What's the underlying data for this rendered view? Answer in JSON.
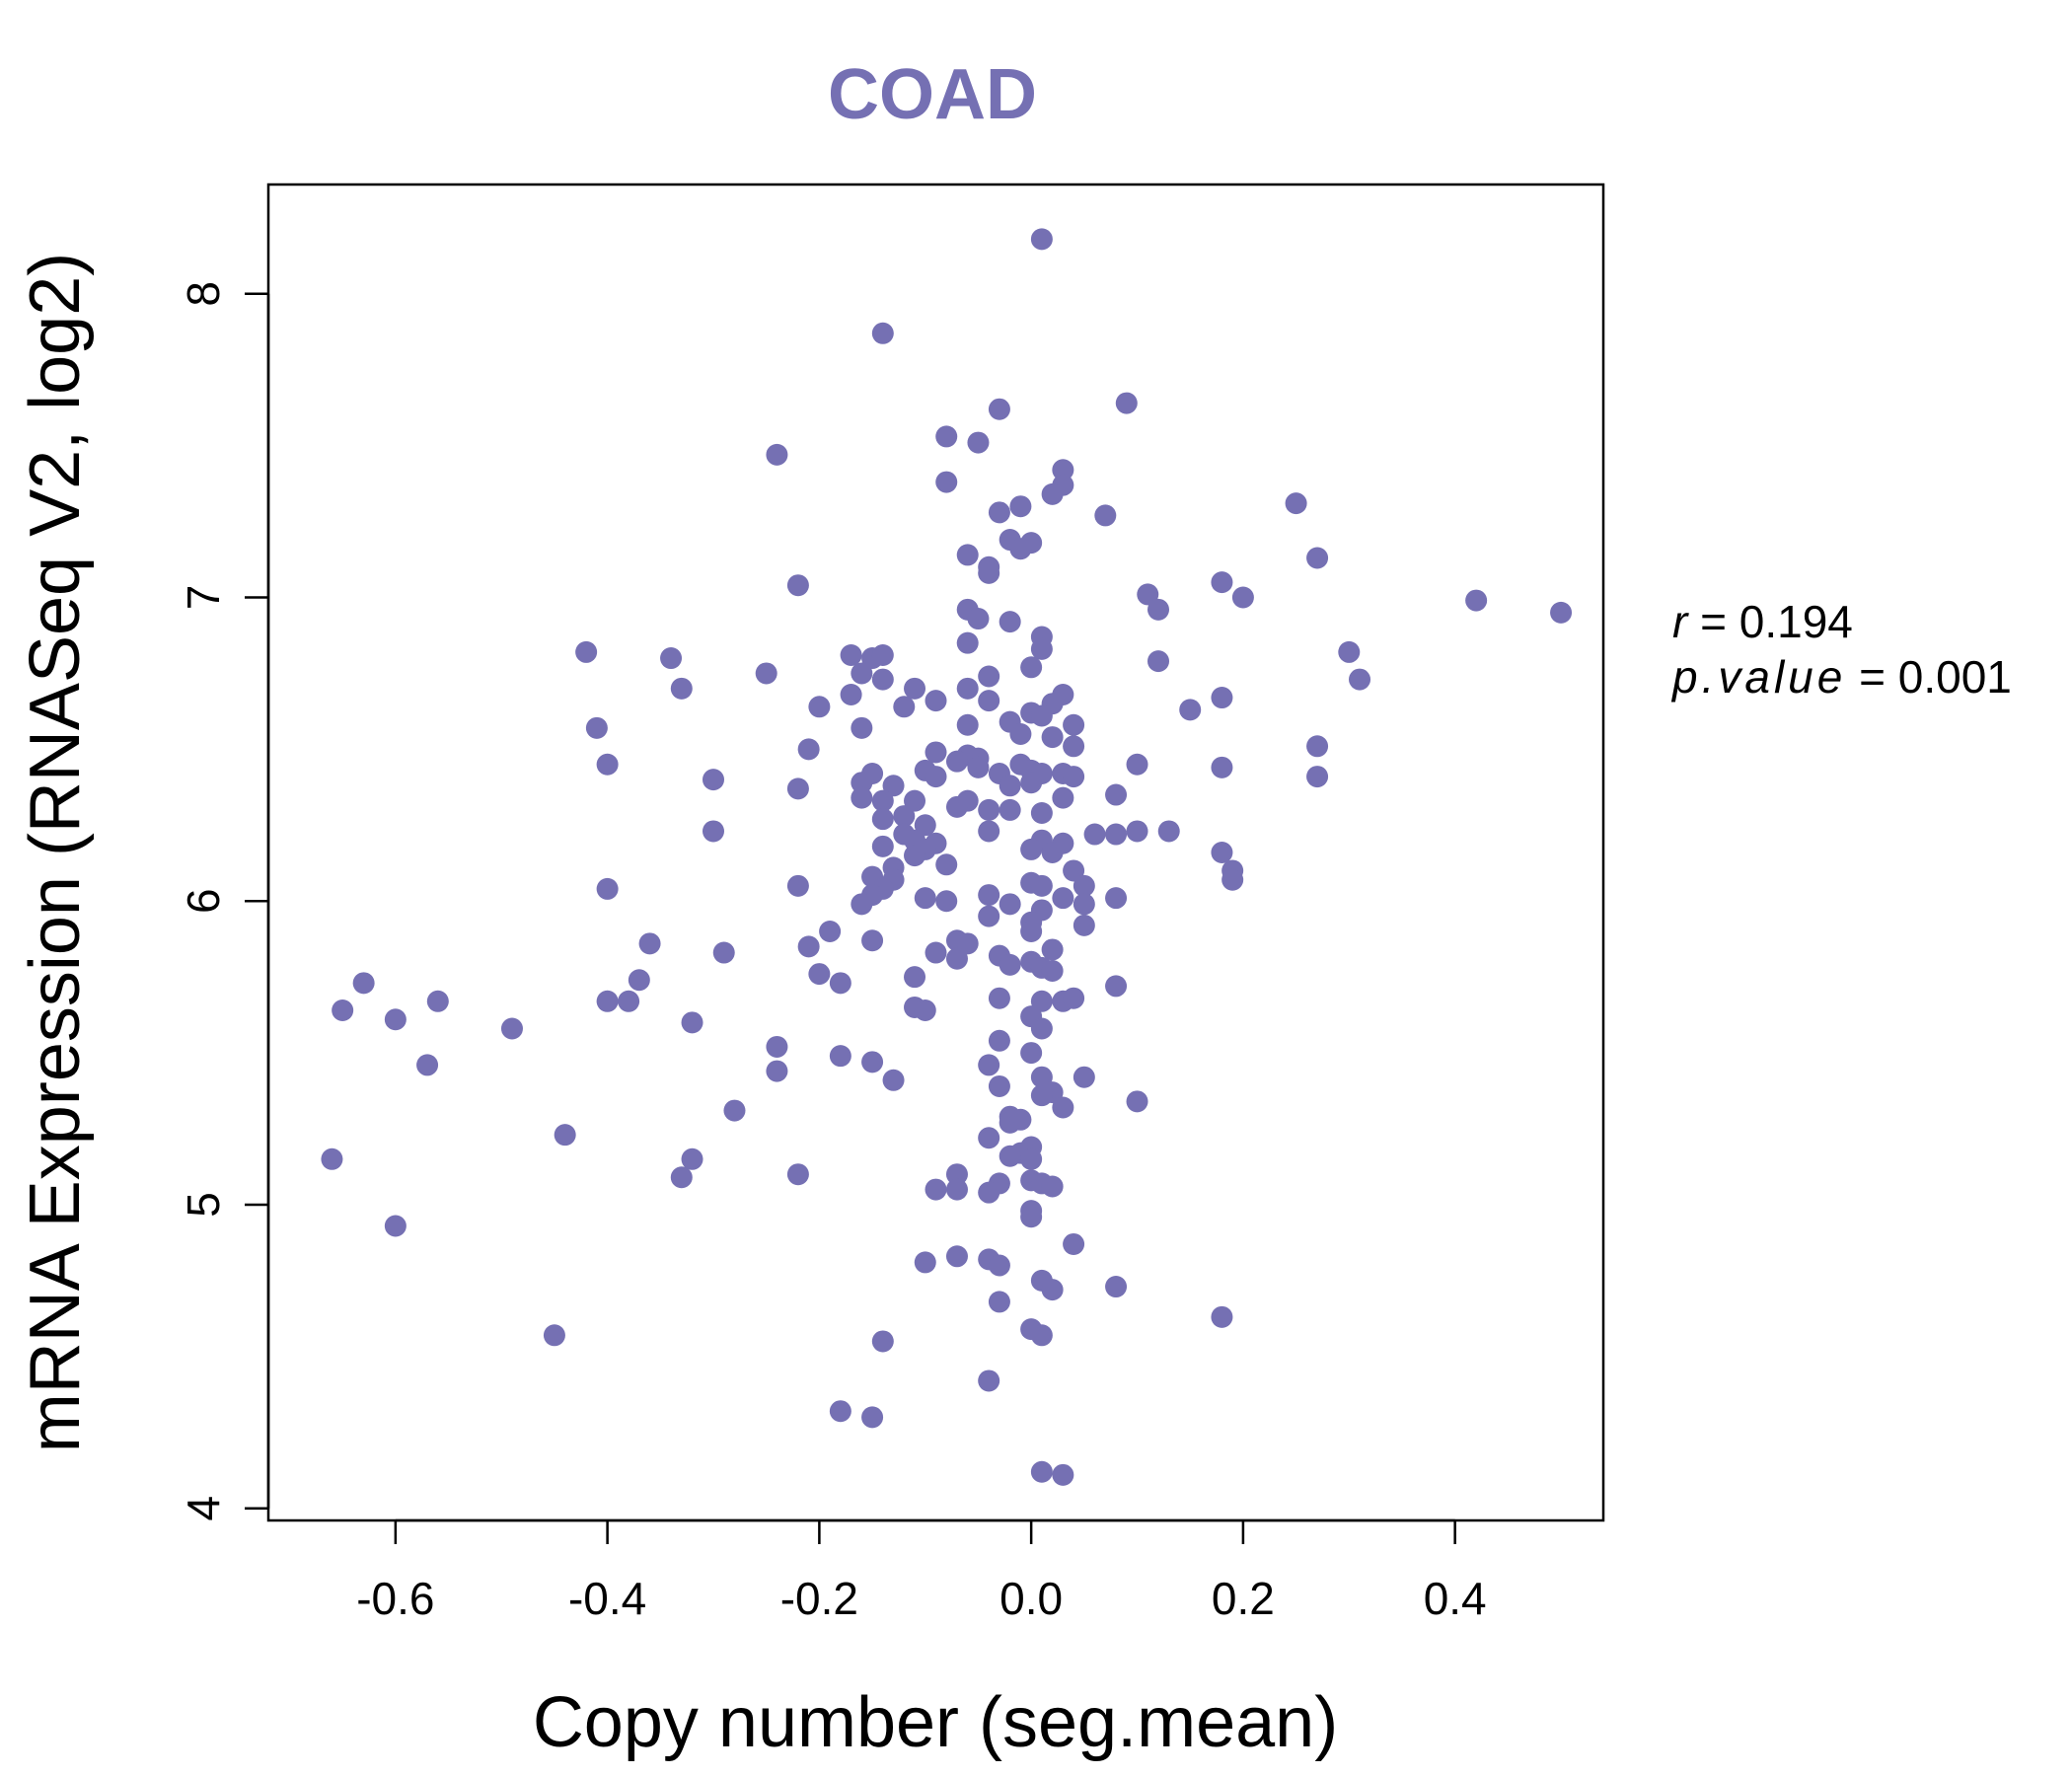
{
  "chart_data": {
    "type": "scatter",
    "title": "COAD",
    "xlabel": "Copy number (seg.mean)",
    "ylabel": "mRNA Expression (RNASeq V2, log2)",
    "xlim": [
      -0.72,
      0.54
    ],
    "ylim": [
      3.96,
      8.36
    ],
    "x_ticks": [
      -0.6,
      -0.4,
      -0.2,
      0.0,
      0.2,
      0.4
    ],
    "x_tick_labels": [
      "-0.6",
      "-0.4",
      "-0.2",
      "0.0",
      "0.2",
      "0.4"
    ],
    "y_ticks": [
      4,
      5,
      6,
      7,
      8
    ],
    "y_tick_labels": [
      "4",
      "5",
      "6",
      "7",
      "8"
    ],
    "point_color": "#7570b3",
    "title_color": "#7570b3",
    "stats": {
      "r_label": "r",
      "r_value": "0.194",
      "p_label": "p.value",
      "p_value": "0.001"
    },
    "points": [
      [
        0.01,
        8.18
      ],
      [
        -0.14,
        7.87
      ],
      [
        0.09,
        7.64
      ],
      [
        -0.03,
        7.62
      ],
      [
        -0.24,
        7.47
      ],
      [
        -0.08,
        7.53
      ],
      [
        -0.05,
        7.51
      ],
      [
        0.03,
        7.42
      ],
      [
        -0.08,
        7.38
      ],
      [
        0.03,
        7.37
      ],
      [
        0.02,
        7.34
      ],
      [
        -0.01,
        7.3
      ],
      [
        -0.03,
        7.28
      ],
      [
        0.07,
        7.27
      ],
      [
        0.25,
        7.31
      ],
      [
        -0.02,
        7.19
      ],
      [
        0.0,
        7.18
      ],
      [
        -0.01,
        7.16
      ],
      [
        -0.06,
        7.14
      ],
      [
        -0.04,
        7.1
      ],
      [
        -0.04,
        7.08
      ],
      [
        0.27,
        7.13
      ],
      [
        -0.22,
        7.04
      ],
      [
        0.18,
        7.05
      ],
      [
        0.11,
        7.01
      ],
      [
        0.2,
        7.0
      ],
      [
        0.42,
        6.99
      ],
      [
        0.5,
        6.95
      ],
      [
        0.12,
        6.96
      ],
      [
        -0.06,
        6.96
      ],
      [
        -0.05,
        6.93
      ],
      [
        -0.02,
        6.92
      ],
      [
        0.01,
        6.87
      ],
      [
        -0.06,
        6.85
      ],
      [
        0.01,
        6.83
      ],
      [
        -0.42,
        6.82
      ],
      [
        -0.17,
        6.81
      ],
      [
        -0.15,
        6.8
      ],
      [
        -0.14,
        6.81
      ],
      [
        -0.34,
        6.8
      ],
      [
        0.3,
        6.82
      ],
      [
        0.12,
        6.79
      ],
      [
        0.0,
        6.77
      ],
      [
        -0.16,
        6.75
      ],
      [
        -0.25,
        6.75
      ],
      [
        -0.04,
        6.74
      ],
      [
        0.31,
        6.73
      ],
      [
        -0.14,
        6.73
      ],
      [
        -0.33,
        6.7
      ],
      [
        -0.06,
        6.7
      ],
      [
        -0.11,
        6.7
      ],
      [
        -0.17,
        6.68
      ],
      [
        0.18,
        6.67
      ],
      [
        0.03,
        6.68
      ],
      [
        -0.04,
        6.66
      ],
      [
        0.02,
        6.65
      ],
      [
        -0.09,
        6.66
      ],
      [
        -0.2,
        6.64
      ],
      [
        -0.12,
        6.64
      ],
      [
        0.15,
        6.63
      ],
      [
        0.0,
        6.62
      ],
      [
        0.01,
        6.61
      ],
      [
        0.04,
        6.58
      ],
      [
        -0.16,
        6.57
      ],
      [
        -0.41,
        6.57
      ],
      [
        -0.06,
        6.58
      ],
      [
        -0.02,
        6.59
      ],
      [
        -0.01,
        6.55
      ],
      [
        0.02,
        6.54
      ],
      [
        0.27,
        6.51
      ],
      [
        0.04,
        6.51
      ],
      [
        -0.21,
        6.5
      ],
      [
        -0.09,
        6.49
      ],
      [
        -0.06,
        6.48
      ],
      [
        -0.05,
        6.47
      ],
      [
        -0.07,
        6.46
      ],
      [
        -0.05,
        6.44
      ],
      [
        -0.01,
        6.45
      ],
      [
        0.0,
        6.43
      ],
      [
        0.1,
        6.45
      ],
      [
        0.18,
        6.44
      ],
      [
        -0.4,
        6.45
      ],
      [
        -0.03,
        6.42
      ],
      [
        0.01,
        6.42
      ],
      [
        0.03,
        6.42
      ],
      [
        -0.1,
        6.43
      ],
      [
        -0.15,
        6.42
      ],
      [
        -0.09,
        6.41
      ],
      [
        0.27,
        6.41
      ],
      [
        -0.3,
        6.4
      ],
      [
        0.04,
        6.41
      ],
      [
        -0.16,
        6.39
      ],
      [
        0.0,
        6.39
      ],
      [
        -0.13,
        6.38
      ],
      [
        -0.22,
        6.37
      ],
      [
        -0.02,
        6.38
      ],
      [
        0.08,
        6.35
      ],
      [
        -0.16,
        6.34
      ],
      [
        -0.14,
        6.33
      ],
      [
        0.03,
        6.34
      ],
      [
        -0.06,
        6.33
      ],
      [
        -0.11,
        6.33
      ],
      [
        -0.04,
        6.3
      ],
      [
        -0.02,
        6.3
      ],
      [
        0.01,
        6.29
      ],
      [
        -0.07,
        6.31
      ],
      [
        -0.12,
        6.28
      ],
      [
        -0.14,
        6.27
      ],
      [
        -0.1,
        6.25
      ],
      [
        -0.04,
        6.23
      ],
      [
        -0.12,
        6.22
      ],
      [
        -0.3,
        6.23
      ],
      [
        0.06,
        6.22
      ],
      [
        0.08,
        6.22
      ],
      [
        0.1,
        6.23
      ],
      [
        0.13,
        6.23
      ],
      [
        -0.11,
        6.2
      ],
      [
        0.01,
        6.2
      ],
      [
        0.03,
        6.19
      ],
      [
        -0.09,
        6.19
      ],
      [
        -0.14,
        6.18
      ],
      [
        -0.1,
        6.17
      ],
      [
        -0.11,
        6.15
      ],
      [
        0.0,
        6.17
      ],
      [
        0.02,
        6.16
      ],
      [
        0.18,
        6.16
      ],
      [
        -0.13,
        6.11
      ],
      [
        -0.08,
        6.12
      ],
      [
        0.04,
        6.1
      ],
      [
        0.19,
        6.1
      ],
      [
        -0.15,
        6.08
      ],
      [
        -0.13,
        6.07
      ],
      [
        0.19,
        6.07
      ],
      [
        -0.22,
        6.05
      ],
      [
        0.05,
        6.05
      ],
      [
        -0.4,
        6.04
      ],
      [
        0.0,
        6.06
      ],
      [
        0.01,
        6.05
      ],
      [
        -0.14,
        6.04
      ],
      [
        -0.15,
        6.02
      ],
      [
        -0.04,
        6.02
      ],
      [
        0.03,
        6.01
      ],
      [
        0.08,
        6.01
      ],
      [
        -0.1,
        6.01
      ],
      [
        -0.08,
        6.0
      ],
      [
        -0.16,
        5.99
      ],
      [
        0.05,
        5.99
      ],
      [
        -0.02,
        5.99
      ],
      [
        0.01,
        5.97
      ],
      [
        -0.04,
        5.95
      ],
      [
        0.0,
        5.93
      ],
      [
        0.05,
        5.92
      ],
      [
        0.0,
        5.9
      ],
      [
        -0.19,
        5.9
      ],
      [
        -0.07,
        5.87
      ],
      [
        -0.15,
        5.87
      ],
      [
        -0.06,
        5.86
      ],
      [
        -0.36,
        5.86
      ],
      [
        -0.21,
        5.85
      ],
      [
        -0.09,
        5.83
      ],
      [
        0.02,
        5.84
      ],
      [
        -0.03,
        5.82
      ],
      [
        -0.29,
        5.83
      ],
      [
        -0.07,
        5.81
      ],
      [
        0.0,
        5.8
      ],
      [
        -0.02,
        5.79
      ],
      [
        0.01,
        5.78
      ],
      [
        -0.2,
        5.76
      ],
      [
        0.02,
        5.77
      ],
      [
        -0.11,
        5.75
      ],
      [
        -0.37,
        5.74
      ],
      [
        -0.18,
        5.73
      ],
      [
        -0.63,
        5.73
      ],
      [
        0.08,
        5.72
      ],
      [
        -0.03,
        5.68
      ],
      [
        0.01,
        5.67
      ],
      [
        0.03,
        5.67
      ],
      [
        0.04,
        5.68
      ],
      [
        -0.4,
        5.67
      ],
      [
        -0.38,
        5.67
      ],
      [
        -0.56,
        5.67
      ],
      [
        -0.11,
        5.65
      ],
      [
        -0.1,
        5.64
      ],
      [
        -0.65,
        5.64
      ],
      [
        0.0,
        5.62
      ],
      [
        -0.6,
        5.61
      ],
      [
        -0.32,
        5.6
      ],
      [
        0.01,
        5.58
      ],
      [
        -0.49,
        5.58
      ],
      [
        -0.03,
        5.54
      ],
      [
        -0.24,
        5.52
      ],
      [
        -0.18,
        5.49
      ],
      [
        0.0,
        5.5
      ],
      [
        -0.15,
        5.47
      ],
      [
        -0.04,
        5.46
      ],
      [
        -0.57,
        5.46
      ],
      [
        -0.24,
        5.44
      ],
      [
        0.01,
        5.42
      ],
      [
        0.05,
        5.42
      ],
      [
        -0.13,
        5.41
      ],
      [
        -0.03,
        5.39
      ],
      [
        0.02,
        5.37
      ],
      [
        0.01,
        5.36
      ],
      [
        0.1,
        5.34
      ],
      [
        0.03,
        5.32
      ],
      [
        -0.28,
        5.31
      ],
      [
        -0.02,
        5.29
      ],
      [
        -0.02,
        5.27
      ],
      [
        -0.01,
        5.28
      ],
      [
        -0.04,
        5.22
      ],
      [
        -0.44,
        5.23
      ],
      [
        0.0,
        5.19
      ],
      [
        -0.01,
        5.17
      ],
      [
        -0.02,
        5.16
      ],
      [
        0.0,
        5.15
      ],
      [
        -0.66,
        5.15
      ],
      [
        -0.32,
        5.15
      ],
      [
        -0.22,
        5.1
      ],
      [
        -0.33,
        5.09
      ],
      [
        -0.07,
        5.1
      ],
      [
        -0.03,
        5.07
      ],
      [
        0.0,
        5.08
      ],
      [
        0.01,
        5.07
      ],
      [
        0.02,
        5.06
      ],
      [
        -0.09,
        5.05
      ],
      [
        -0.07,
        5.05
      ],
      [
        -0.04,
        5.04
      ],
      [
        0.0,
        4.98
      ],
      [
        0.0,
        4.96
      ],
      [
        -0.6,
        4.93
      ],
      [
        0.04,
        4.87
      ],
      [
        -0.07,
        4.83
      ],
      [
        -0.1,
        4.81
      ],
      [
        -0.04,
        4.82
      ],
      [
        -0.03,
        4.8
      ],
      [
        0.01,
        4.75
      ],
      [
        0.08,
        4.73
      ],
      [
        0.02,
        4.72
      ],
      [
        -0.03,
        4.68
      ],
      [
        0.18,
        4.63
      ],
      [
        0.0,
        4.59
      ],
      [
        0.01,
        4.57
      ],
      [
        -0.45,
        4.57
      ],
      [
        -0.14,
        4.55
      ],
      [
        -0.04,
        4.42
      ],
      [
        -0.18,
        4.32
      ],
      [
        -0.15,
        4.3
      ],
      [
        0.01,
        4.12
      ],
      [
        0.03,
        4.11
      ]
    ]
  }
}
